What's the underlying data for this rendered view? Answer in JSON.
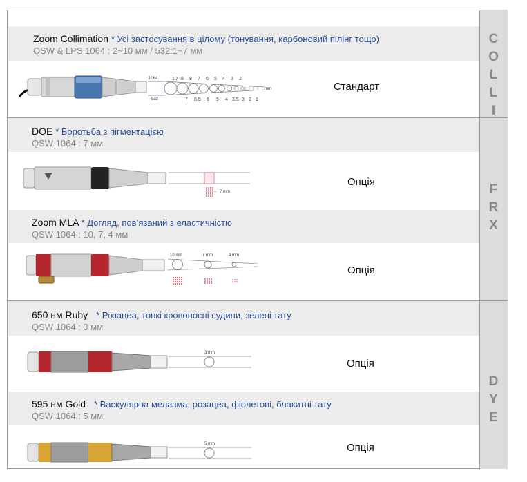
{
  "sections": [
    {
      "name": "COLLI",
      "items": [
        {
          "title": "Zoom Collimation",
          "note": "* Усі застосування в цілому (тонування, карбоновий пілінг тощо)",
          "spec": "QSW & LPS 1064 : 2~10 мм / 532:1~7 мм",
          "status": "Стандарт",
          "diagram": {
            "label_top": "1064",
            "label_bottom": "532",
            "top_ticks": [
              "10",
              "9",
              "8",
              "7",
              "6",
              "5",
              "4",
              "3",
              "2"
            ],
            "bottom_ticks": [
              "7",
              "6.5",
              "6",
              "5",
              "4",
              "3.5",
              "3",
              "2",
              "1"
            ],
            "unit": "mm"
          }
        }
      ]
    },
    {
      "name": "FRX",
      "items": [
        {
          "title": "DOE",
          "note": "* Боротьба з пігментацією",
          "spec": "QSW 1064 : 7 мм",
          "status": "Опція",
          "diagram": {
            "spot_label": "7 mm"
          }
        },
        {
          "title": "Zoom MLA",
          "note": "* Догляд, пов’язаний з еластичністю",
          "spec": "QSW 1064 : 10, 7, 4 мм",
          "status": "Опція",
          "diagram": {
            "spot_labels": [
              "10 mm",
              "7 mm",
              "4 mm"
            ]
          }
        }
      ]
    },
    {
      "name": "DYE",
      "items": [
        {
          "title": "650 нм Ruby",
          "note": "* Розацеа, тонкі кровоносні судини, зелені тату",
          "spec": "QSW 1064 : 3 мм",
          "status": "Опція",
          "diagram": {
            "spot_label": "3 mm"
          }
        },
        {
          "title": "595 нм Gold",
          "note": "* Васкулярна мелазма, розацеа, фіолетові, блакитні тату",
          "spec": "QSW 1064 : 5 мм",
          "status": "Опція",
          "diagram": {
            "spot_label": "5 mm"
          }
        }
      ]
    }
  ],
  "side_labels": {
    "colli": [
      "C",
      "O",
      "L",
      "L",
      "I"
    ],
    "frx": [
      "F",
      "R",
      "X"
    ],
    "dye": [
      "D",
      "Y",
      "E"
    ]
  },
  "colors": {
    "colli_band": "#4a76b0",
    "ruby_band": "#b3262d",
    "gold_band": "#d9a534",
    "doe_band": "#222222",
    "note_text": "#2c4f9a",
    "dot_red": "#d9455a"
  }
}
